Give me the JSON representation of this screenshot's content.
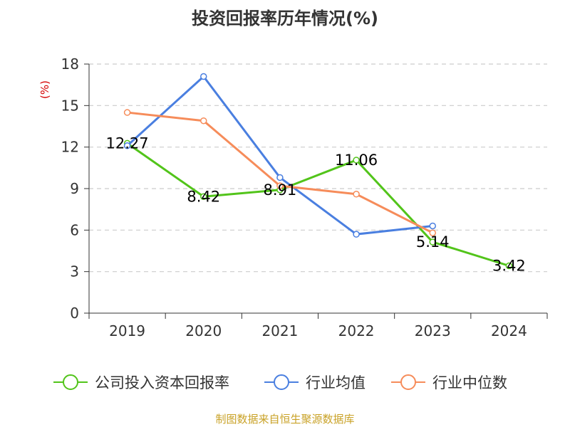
{
  "chart_data": {
    "type": "line",
    "title": "投资回报率历年情况(%)",
    "ylabel": "(%)",
    "xlabel": "",
    "categories": [
      "2019",
      "2020",
      "2021",
      "2022",
      "2023",
      "2024"
    ],
    "ylim": [
      0,
      18
    ],
    "yticks": [
      0,
      3,
      6,
      9,
      12,
      15,
      18
    ],
    "grid": true,
    "legend_position": "bottom",
    "series": [
      {
        "name": "公司投入资本回报率",
        "color": "#52c41a",
        "values": [
          12.27,
          8.42,
          8.91,
          11.06,
          5.14,
          3.42
        ],
        "labels": [
          "12.27",
          "8.42",
          "8.91",
          "11.06",
          "5.14",
          "3.42"
        ]
      },
      {
        "name": "行业均值",
        "color": "#4a7fe0",
        "values": [
          12.1,
          17.1,
          9.8,
          5.7,
          6.3,
          null
        ]
      },
      {
        "name": "行业中位数",
        "color": "#f68c5a",
        "values": [
          14.5,
          13.9,
          9.2,
          8.6,
          5.8,
          null
        ]
      }
    ]
  },
  "source_note": "制图数据来自恒生聚源数据库",
  "colors": {
    "ylabel": "#d40000",
    "grid": "#cccccc",
    "axis": "#333333",
    "text": "#333333"
  }
}
